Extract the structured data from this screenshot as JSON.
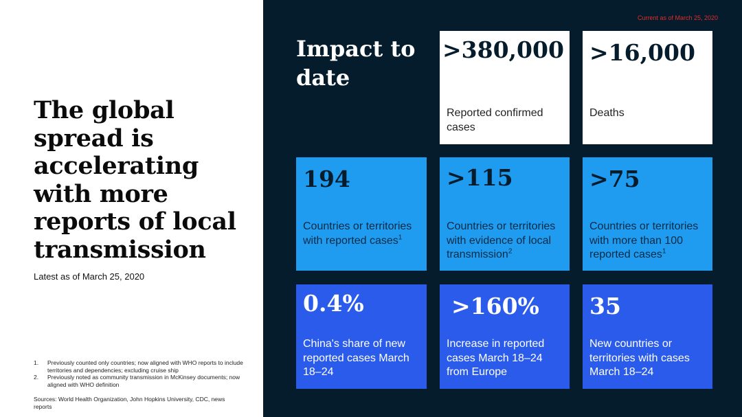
{
  "left": {
    "title": "The global spread is accelerating with more reports of local transmission",
    "subtitle": "Latest as of March 25, 2020",
    "footnotes": [
      {
        "num": "1.",
        "text": "Previously counted only countries; now aligned with WHO reports to include territories and dependencies; excluding cruise ship"
      },
      {
        "num": "2.",
        "text": "Previously noted as community transmission in McKinsey documents; now aligned with WHO definition"
      }
    ],
    "sources": "Sources: World Health Organization, John Hopkins University, CDC, news reports"
  },
  "right": {
    "current_note": "Current as of March 25, 2020",
    "heading": "Impact to date",
    "tiles": [
      {
        "value": ">380,000",
        "label": "Reported confirmed cases",
        "sup": ""
      },
      {
        "value": ">16,000",
        "label": "Deaths",
        "sup": ""
      },
      {
        "value": "194",
        "label": "Countries or territories with reported cases",
        "sup": "1"
      },
      {
        "value": ">115",
        "label": "Countries or territories with evidence of local transmission",
        "sup": "2"
      },
      {
        "value": ">75",
        "label": "Countries or territories with more than 100 reported cases",
        "sup": "1"
      },
      {
        "value": "0.4%",
        "label": "China's share of new reported cases March 18–24",
        "sup": ""
      },
      {
        "value": ">160%",
        "label": "Increase in reported cases March 18–24 from Europe",
        "sup": ""
      },
      {
        "value": "35",
        "label": "New countries or territories with cases March 18–24",
        "sup": ""
      }
    ],
    "colors": {
      "panel": "#051c2c",
      "white_tile": "#ffffff",
      "cyan_tile": "#1f9cf0",
      "blue_tile": "#2a5bea",
      "current_note": "#e52b2b"
    }
  }
}
